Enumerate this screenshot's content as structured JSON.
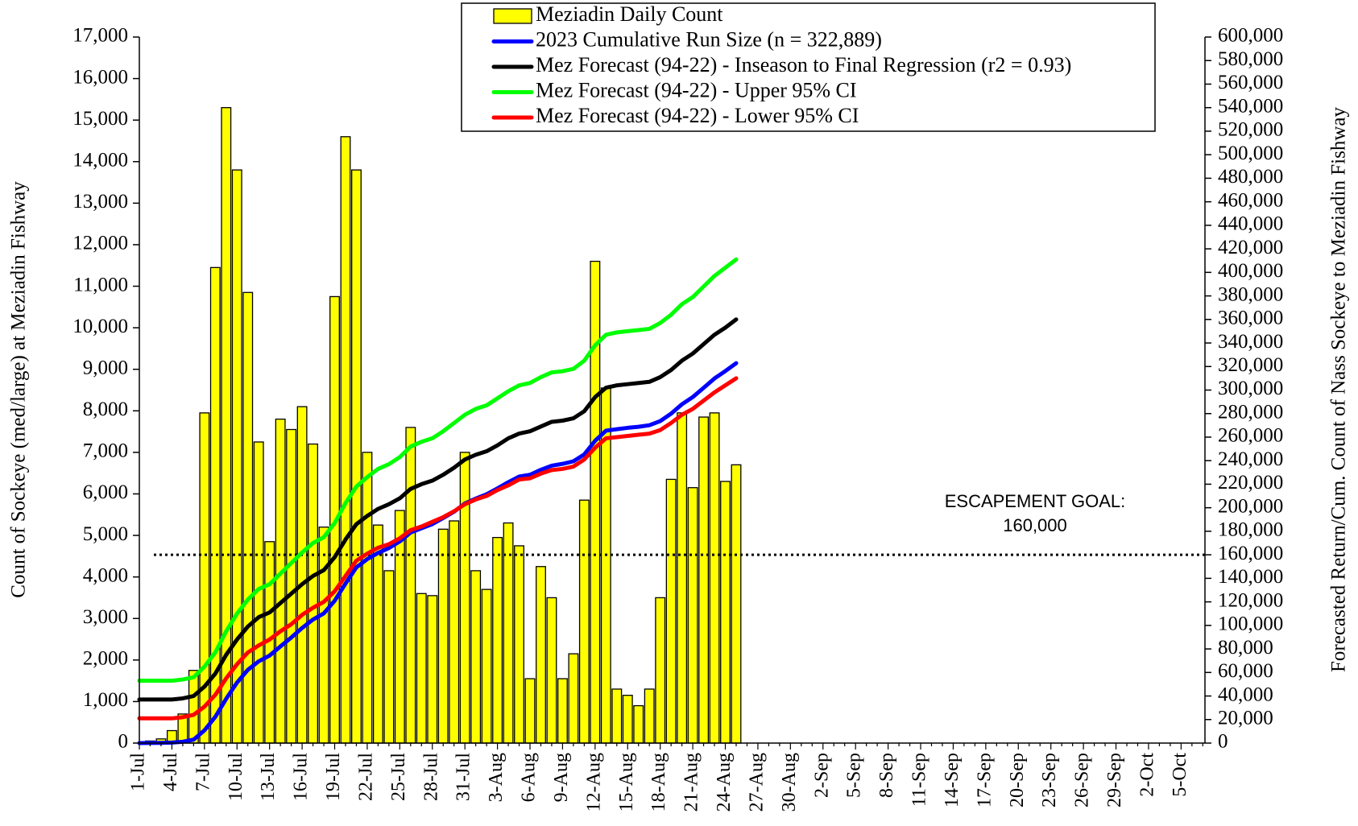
{
  "chart_data": {
    "type": "bar",
    "y_label": "Count of Sockeye (med/large) at Meziadin Fishway",
    "y2_label": "Forecasted Return/Cum. Count of Nass Sockeye to Meziadin Fishway",
    "categories": [
      "1-Jul",
      null,
      null,
      "4-Jul",
      null,
      null,
      "7-Jul",
      null,
      null,
      "10-Jul",
      null,
      null,
      "13-Jul",
      null,
      null,
      "16-Jul",
      null,
      null,
      "19-Jul",
      null,
      null,
      "22-Jul",
      null,
      null,
      "25-Jul",
      null,
      null,
      "28-Jul",
      null,
      null,
      "31-Jul",
      null,
      null,
      "3-Aug",
      null,
      null,
      "6-Aug",
      null,
      null,
      "9-Aug",
      null,
      null,
      "12-Aug",
      null,
      null,
      "15-Aug",
      null,
      null,
      "18-Aug",
      null,
      null,
      "21-Aug",
      null,
      null,
      "24-Aug",
      null,
      null,
      "27-Aug",
      null,
      null,
      "30-Aug",
      null,
      null,
      "2-Sep",
      null,
      null,
      "5-Sep",
      null,
      null,
      "8-Sep",
      null,
      null,
      "11-Sep",
      null,
      null,
      "14-Sep",
      null,
      null,
      "17-Sep",
      null,
      null,
      "20-Sep",
      null,
      null,
      "23-Sep",
      null,
      null,
      "26-Sep",
      null,
      null,
      "29-Sep",
      null,
      null,
      "2-Oct",
      null,
      null,
      "5-Oct",
      null,
      null
    ],
    "series": [
      {
        "name": "Meziadin Daily Count",
        "type": "bar",
        "color": "#ffff00",
        "values": [
          0,
          50,
          100,
          300,
          700,
          1750,
          7950,
          11450,
          15300,
          13800,
          10850,
          7250,
          4850,
          7800,
          7550,
          8100,
          7200,
          5200,
          10750,
          14600,
          13800,
          7000,
          5250,
          4150,
          5600,
          7600,
          3600,
          3550,
          5150,
          5350,
          7000,
          4150,
          3700,
          4950,
          5300,
          4750,
          1550,
          4250,
          3500,
          1550,
          2150,
          5850,
          11600,
          8550,
          1300,
          1150,
          900,
          1300,
          3500,
          6350,
          7950,
          6150,
          7850,
          7950,
          6300,
          6700,
          null,
          null,
          null,
          null,
          null,
          null,
          null,
          null,
          null,
          null,
          null,
          null,
          null,
          null,
          null,
          null,
          null,
          null,
          null,
          null,
          null,
          null,
          null,
          null,
          null,
          null,
          null,
          null,
          null,
          null,
          null,
          null,
          null,
          null,
          null,
          null,
          null,
          null,
          null,
          null,
          null,
          null,
          null
        ]
      },
      {
        "name": "2023 Cumulative Run Size (n = 322,889)",
        "type": "line",
        "axis": "y2",
        "color": "#0000ff",
        "values": [
          0,
          50,
          150,
          450,
          1150,
          2900,
          10850,
          22300,
          37600,
          51400,
          62250,
          69500,
          74350,
          82150,
          89700,
          97800,
          105000,
          110200,
          120950,
          135550,
          149350,
          156350,
          161600,
          165750,
          171350,
          178950,
          182550,
          186100,
          191250,
          196600,
          203600,
          207750,
          211450,
          216400,
          221700,
          226450,
          228000,
          232250,
          235750,
          237300,
          239450,
          245300,
          256900,
          265450,
          266750,
          267900,
          268800,
          270100,
          273600,
          279950,
          287900,
          294050,
          301900,
          309850,
          316150,
          322850,
          null,
          null,
          null,
          null,
          null,
          null,
          null,
          null,
          null,
          null,
          null,
          null,
          null,
          null,
          null,
          null,
          null,
          null,
          null,
          null,
          null,
          null,
          null,
          null,
          null,
          null,
          null,
          null,
          null,
          null,
          null,
          null,
          null,
          null,
          null,
          null,
          null,
          null,
          null,
          null,
          null,
          null,
          null
        ]
      },
      {
        "name": "Mez Forecast (94-22) - Inseason to Final Regression (r2 = 0.93)",
        "type": "line",
        "axis": "y2",
        "color": "#000000",
        "values": [
          37000,
          37000,
          37000,
          37000,
          38000,
          40000,
          48000,
          59000,
          75000,
          88000,
          99000,
          107000,
          111000,
          119000,
          127000,
          135000,
          142000,
          147000,
          158000,
          173000,
          186000,
          193000,
          199000,
          203000,
          208000,
          216000,
          220000,
          223000,
          228000,
          234000,
          241000,
          245000,
          248000,
          253000,
          259000,
          263000,
          265000,
          269000,
          273000,
          274000,
          276000,
          282000,
          294000,
          302000,
          304000,
          305000,
          306000,
          307000,
          311000,
          317000,
          325000,
          331000,
          339000,
          347000,
          353000,
          360000,
          null,
          null,
          null,
          null,
          null,
          null,
          null,
          null,
          null,
          null,
          null,
          null,
          null,
          null,
          null,
          null,
          null,
          null,
          null,
          null,
          null,
          null,
          null,
          null,
          null,
          null,
          null,
          null,
          null,
          null,
          null,
          null,
          null,
          null,
          null,
          null,
          null,
          null,
          null,
          null,
          null,
          null,
          null
        ]
      },
      {
        "name": "Mez Forecast (94-22) - Upper 95% CI",
        "type": "line",
        "axis": "y2",
        "color": "#00ff00",
        "values": [
          53000,
          53000,
          53000,
          53000,
          54000,
          56000,
          65000,
          77000,
          95000,
          110000,
          122000,
          131000,
          135000,
          144000,
          153000,
          162000,
          170000,
          175000,
          187000,
          204000,
          218000,
          226000,
          233000,
          237000,
          243000,
          252000,
          256000,
          259000,
          265000,
          272000,
          279000,
          284000,
          287000,
          293000,
          299000,
          304000,
          306000,
          311000,
          315000,
          316000,
          318000,
          325000,
          338000,
          347000,
          349000,
          350000,
          351000,
          352000,
          357000,
          364000,
          373000,
          379000,
          388000,
          397000,
          404000,
          411000,
          null,
          null,
          null,
          null,
          null,
          null,
          null,
          null,
          null,
          null,
          null,
          null,
          null,
          null,
          null,
          null,
          null,
          null,
          null,
          null,
          null,
          null,
          null,
          null,
          null,
          null,
          null,
          null,
          null,
          null,
          null,
          null,
          null,
          null,
          null,
          null,
          null,
          null,
          null,
          null,
          null,
          null,
          null
        ]
      },
      {
        "name": "Mez Forecast (94-22) - Lower 95% CI",
        "type": "line",
        "axis": "y2",
        "color": "#ff0000",
        "values": [
          21000,
          21000,
          21000,
          21000,
          22000,
          24000,
          31000,
          41000,
          55000,
          67000,
          77000,
          83000,
          88000,
          95000,
          101000,
          109000,
          115000,
          120000,
          129000,
          142000,
          155000,
          161000,
          166000,
          169000,
          174000,
          181000,
          184000,
          188000,
          192000,
          197000,
          203000,
          207000,
          210000,
          215000,
          219000,
          224000,
          225000,
          229000,
          232000,
          233000,
          235000,
          241000,
          251000,
          259000,
          260000,
          261000,
          262000,
          263000,
          266000,
          272000,
          279000,
          284000,
          291000,
          298000,
          304000,
          310000,
          null,
          null,
          null,
          null,
          null,
          null,
          null,
          null,
          null,
          null,
          null,
          null,
          null,
          null,
          null,
          null,
          null,
          null,
          null,
          null,
          null,
          null,
          null,
          null,
          null,
          null,
          null,
          null,
          null,
          null,
          null,
          null,
          null,
          null,
          null,
          null,
          null,
          null,
          null,
          null,
          null,
          null,
          null
        ]
      }
    ],
    "ylim": [
      0,
      17000
    ],
    "yticks": [
      0,
      {
        "value": 1000,
        "label": "1,000"
      },
      {
        "value": 2000,
        "label": "2,000"
      },
      {
        "value": 3000,
        "label": "3,000"
      },
      {
        "value": 4000,
        "label": "4,000"
      },
      {
        "value": 5000,
        "label": "5,000"
      },
      {
        "value": 6000,
        "label": "6,000"
      },
      {
        "value": 7000,
        "label": "7,000"
      },
      {
        "value": 8000,
        "label": "8,000"
      },
      {
        "value": 9000,
        "label": "9,000"
      },
      {
        "value": 10000,
        "label": "10,000"
      },
      {
        "value": 11000,
        "label": "11,000"
      },
      {
        "value": 12000,
        "label": "12,000"
      },
      {
        "value": 13000,
        "label": "13,000"
      },
      {
        "value": 14000,
        "label": "14,000"
      },
      {
        "value": 15000,
        "label": "15,000"
      },
      {
        "value": 16000,
        "label": "16,000"
      },
      {
        "value": 17000,
        "label": "17,000"
      }
    ],
    "y2lim": [
      0,
      600000
    ],
    "y2ticks": [
      0,
      {
        "value": 20000,
        "label": "20,000"
      },
      {
        "value": 40000,
        "label": "40,000"
      },
      {
        "value": 60000,
        "label": "60,000"
      },
      {
        "value": 80000,
        "label": "80,000"
      },
      {
        "value": 100000,
        "label": "100,000"
      },
      {
        "value": 120000,
        "label": "120,000"
      },
      {
        "value": 140000,
        "label": "140,000"
      },
      {
        "value": 160000,
        "label": "160,000"
      },
      {
        "value": 180000,
        "label": "180,000"
      },
      {
        "value": 200000,
        "label": "200,000"
      },
      {
        "value": 220000,
        "label": "220,000"
      },
      {
        "value": 240000,
        "label": "240,000"
      },
      {
        "value": 260000,
        "label": "260,000"
      },
      {
        "value": 280000,
        "label": "280,000"
      },
      {
        "value": 300000,
        "label": "300,000"
      },
      {
        "value": 320000,
        "label": "320,000"
      },
      {
        "value": 340000,
        "label": "340,000"
      },
      {
        "value": 360000,
        "label": "360,000"
      },
      {
        "value": 380000,
        "label": "380,000"
      },
      {
        "value": 400000,
        "label": "400,000"
      },
      {
        "value": 420000,
        "label": "420,000"
      },
      {
        "value": 440000,
        "label": "440,000"
      },
      {
        "value": 460000,
        "label": "460,000"
      },
      {
        "value": 480000,
        "label": "480,000"
      },
      {
        "value": 500000,
        "label": "500,000"
      },
      {
        "value": 520000,
        "label": "520,000"
      },
      {
        "value": 540000,
        "label": "540,000"
      },
      {
        "value": 560000,
        "label": "560,000"
      },
      {
        "value": 580000,
        "label": "580,000"
      },
      {
        "value": 600000,
        "label": "600,000"
      }
    ],
    "escapement_goal": {
      "value": 160000,
      "label": [
        "ESCAPEMENT GOAL:",
        "160,000"
      ]
    },
    "grid": false
  }
}
